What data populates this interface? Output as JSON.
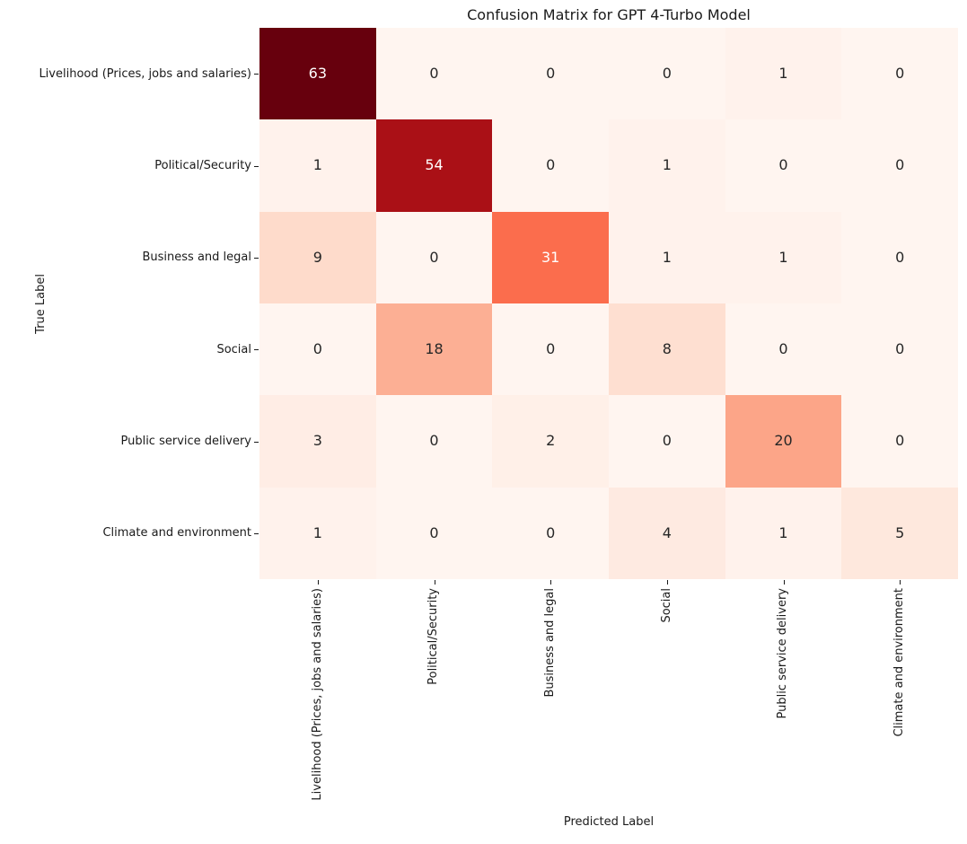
{
  "chart_data": {
    "type": "heatmap",
    "title": "Confusion Matrix for GPT 4-Turbo Model",
    "xlabel": "Predicted Label",
    "ylabel": "True Label",
    "categories": [
      "Livelihood (Prices, jobs and salaries)",
      "Political/Security",
      "Business and legal",
      "Social",
      "Public service delivery",
      "Climate and environment"
    ],
    "matrix": [
      [
        63,
        0,
        0,
        0,
        1,
        0
      ],
      [
        1,
        54,
        0,
        1,
        0,
        0
      ],
      [
        9,
        0,
        31,
        1,
        1,
        0
      ],
      [
        0,
        18,
        0,
        8,
        0,
        0
      ],
      [
        3,
        0,
        2,
        0,
        20,
        0
      ],
      [
        1,
        0,
        0,
        4,
        1,
        5
      ]
    ],
    "vmin": 0,
    "vmax": 63,
    "colormap": "Reds",
    "colormap_stops": [
      "#fff5f0",
      "#fee0d2",
      "#fcbba1",
      "#fc9272",
      "#fb6a4a",
      "#ef3b2c",
      "#cb181d",
      "#a50f15",
      "#67000d"
    ],
    "annotation_text_colors": {
      "on_light": "#262626",
      "on_dark": "#ffffff"
    },
    "layout": {
      "grid": false,
      "legend": "none",
      "colorbar": false,
      "x_tick_rotation_deg": 90
    }
  }
}
